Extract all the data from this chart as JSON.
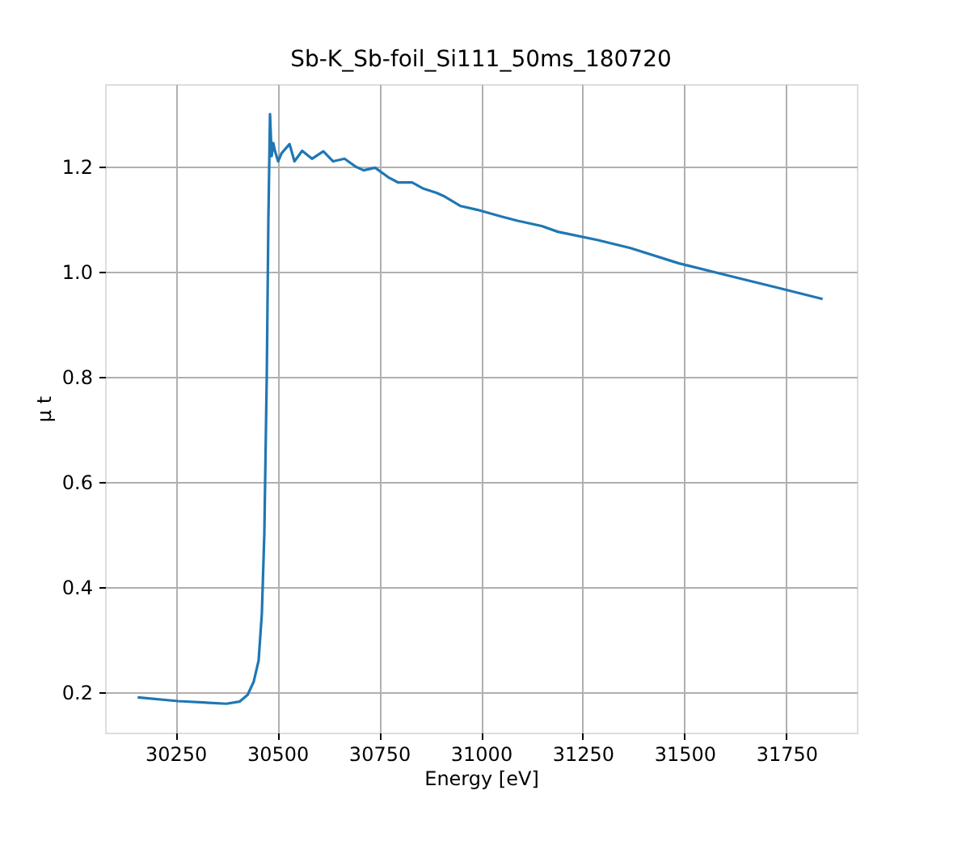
{
  "chart_data": {
    "type": "line",
    "title": "Sb-K_Sb-foil_Si111_50ms_180720",
    "xlabel": "Energy [eV]",
    "ylabel": "μ t",
    "x": [
      30157,
      30256,
      30375,
      30407,
      30427,
      30442,
      30454,
      30462,
      30468,
      30474,
      30478,
      30482,
      30486,
      30490,
      30494,
      30502,
      30510,
      30530,
      30542,
      30561,
      30585,
      30613,
      30637,
      30665,
      30692,
      30712,
      30740,
      30772,
      30796,
      30831,
      30859,
      30891,
      30911,
      30950,
      30990,
      31050,
      31090,
      31149,
      31189,
      31288,
      31367,
      31486,
      31605,
      31736,
      31839
    ],
    "series": [
      {
        "color": "#1f77b4",
        "values": [
          0.19,
          0.183,
          0.178,
          0.182,
          0.195,
          0.22,
          0.26,
          0.35,
          0.5,
          0.8,
          1.1,
          1.3,
          1.22,
          1.245,
          1.23,
          1.21,
          1.225,
          1.243,
          1.21,
          1.23,
          1.215,
          1.229,
          1.21,
          1.215,
          1.2,
          1.193,
          1.198,
          1.18,
          1.17,
          1.17,
          1.158,
          1.15,
          1.143,
          1.125,
          1.118,
          1.105,
          1.097,
          1.087,
          1.076,
          1.06,
          1.045,
          1.016,
          0.993,
          0.968,
          0.948
        ]
      }
    ],
    "xlim": [
      30077,
      31923
    ],
    "ylim": [
      0.123,
      1.357
    ],
    "xticks": [
      30250,
      30500,
      30750,
      31000,
      31250,
      31500,
      31750
    ],
    "yticks": [
      {
        "value": 0.2,
        "label": "0.2"
      },
      {
        "value": 0.4,
        "label": "0.4"
      },
      {
        "value": 0.6,
        "label": "0.6"
      },
      {
        "value": 0.8,
        "label": "0.8"
      },
      {
        "value": 1,
        "label": "1.0"
      },
      {
        "value": 1.2,
        "label": "1.2"
      }
    ],
    "grid": true,
    "line_style": "solid"
  }
}
